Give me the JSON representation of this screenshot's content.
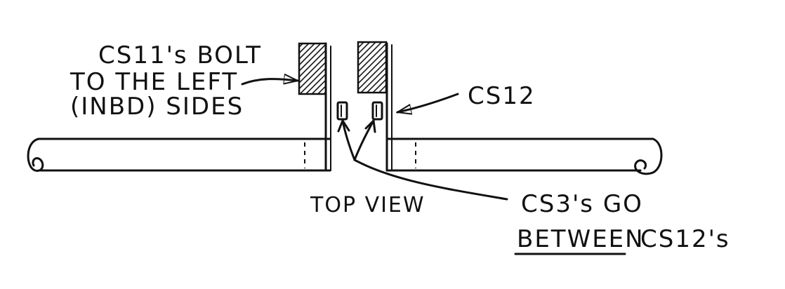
{
  "labels": {
    "cs11_line1": "CS11's BOLT",
    "cs11_line2": "TO THE LEFT",
    "cs11_line3": "(INBD) SIDES",
    "cs12": "CS12",
    "top_view": "TOP VIEW",
    "cs3_line1": "CS3's GO",
    "cs3_between": "BETWEEN",
    "cs3_line2_rest": "CS12's"
  }
}
